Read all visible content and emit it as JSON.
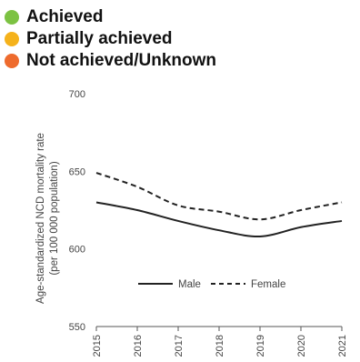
{
  "status_legend": [
    {
      "label": "Achieved",
      "color": "#7cc242"
    },
    {
      "label": "Partially achieved",
      "color": "#f5b21b"
    },
    {
      "label": "Not achieved/Unknown",
      "color": "#ee6b2d"
    }
  ],
  "chart_data": {
    "type": "line",
    "x": [
      "2015",
      "2016",
      "2017",
      "2018",
      "2019",
      "2020",
      "2021"
    ],
    "series": [
      {
        "name": "Male",
        "style": "solid",
        "values": [
          630,
          625,
          618,
          612,
          608,
          614,
          618
        ]
      },
      {
        "name": "Female",
        "style": "dashed",
        "values": [
          649,
          640,
          628,
          624,
          619,
          625,
          630
        ]
      }
    ],
    "ylabel": "Age-standardized NCD mortality rate (per 100 000 population)",
    "ylabel_lines": [
      "Age-standardized NCD mortality rate",
      "(per 100 000 population)"
    ],
    "ylim": [
      550,
      700
    ],
    "yticks": [
      550,
      600,
      650,
      700
    ],
    "grid": false,
    "legend_position": "inside-bottom",
    "line_color": "#222222"
  }
}
